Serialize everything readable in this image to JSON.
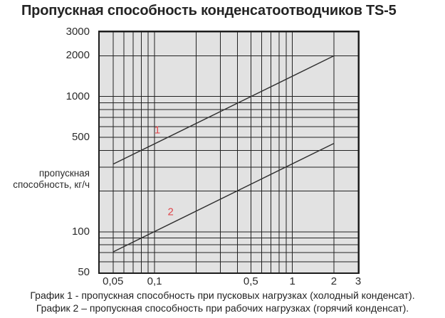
{
  "colors": {
    "plot_background": "#e2e2e2",
    "plot_frame": "#1c1c1c",
    "gridline": "#222222",
    "series_line": "#2f2f2f",
    "series_label": "#e0484d",
    "text": "#2b2b2b"
  },
  "chart_data": {
    "type": "line",
    "title": "Пропускная способность конденсатоотводчиков TS-5",
    "xlabel": "",
    "ylabel": "пропускная способность, кг/ч",
    "ylabel_lines": [
      "пропускная",
      "способность, кг/ч"
    ],
    "x_scale": "log",
    "y_scale": "log",
    "x_range": [
      0.04,
      3.0
    ],
    "y_range": [
      50,
      3000
    ],
    "grid": true,
    "legend_position": "none",
    "x_grid": [
      0.05,
      0.06,
      0.07,
      0.08,
      0.09,
      0.1,
      0.2,
      0.3,
      0.4,
      0.5,
      0.6,
      0.7,
      0.8,
      0.9,
      1,
      2,
      3
    ],
    "y_grid": [
      60,
      70,
      80,
      90,
      100,
      200,
      300,
      400,
      500,
      600,
      700,
      800,
      900,
      1000,
      2000,
      3000
    ],
    "x_ticks": [
      {
        "value": 0.05,
        "label": "0,05"
      },
      {
        "value": 0.1,
        "label": "0,1"
      },
      {
        "value": 0.5,
        "label": "0,5"
      },
      {
        "value": 1,
        "label": "1"
      },
      {
        "value": 2,
        "label": "2"
      },
      {
        "value": 3,
        "label": "3"
      }
    ],
    "y_ticks": [
      {
        "value": 3000,
        "label": "3000"
      },
      {
        "value": 2000,
        "label": "2000"
      },
      {
        "value": 1000,
        "label": "1000"
      },
      {
        "value": 500,
        "label": "500"
      },
      {
        "value": 100,
        "label": "100"
      },
      {
        "value": 50,
        "label": "50"
      }
    ],
    "series": [
      {
        "name": "1",
        "points": [
          [
            0.05,
            316
          ],
          [
            2,
            2000
          ]
        ],
        "label_pos": [
          0.105,
          565
        ]
      },
      {
        "name": "2",
        "points": [
          [
            0.05,
            71
          ],
          [
            2,
            450
          ]
        ],
        "label_pos": [
          0.131,
          140
        ]
      }
    ],
    "notes": [
      "График 1 - пропускная способность при пусковых нагрузках (холодный конденсат).",
      "График 2 – пропускная способность при рабочих нагрузках (горячий конденсат)."
    ]
  }
}
